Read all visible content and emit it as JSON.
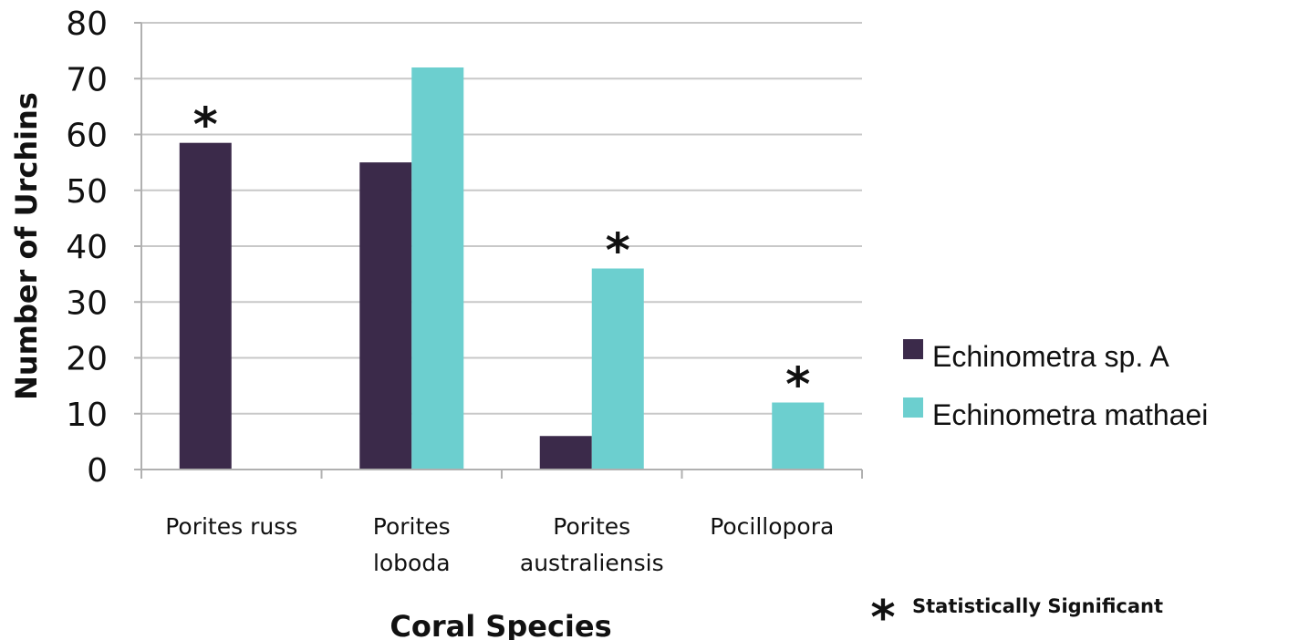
{
  "chart_data": {
    "type": "bar",
    "title": "",
    "xlabel": "Coral Species",
    "ylabel": "Number of Urchins",
    "ylim": [
      0,
      80
    ],
    "yticks": [
      0,
      10,
      20,
      30,
      40,
      50,
      60,
      70,
      80
    ],
    "grid": true,
    "legend_position": "right",
    "categories": [
      [
        "Porites russ"
      ],
      [
        "Porites",
        "loboda"
      ],
      [
        "Porites",
        "australiensis"
      ],
      [
        "Pocillopora"
      ]
    ],
    "series": [
      {
        "name": "Echinometra sp. A",
        "color": "#3b2a4a",
        "values": [
          58.5,
          55,
          6,
          0
        ]
      },
      {
        "name": "Echinometra mathaei",
        "color": "#6ccfcf",
        "values": [
          0,
          72,
          36,
          12
        ]
      }
    ],
    "significance_markers": [
      {
        "category_index": 0,
        "series_index": 0,
        "symbol": "*"
      },
      {
        "category_index": 2,
        "series_index": 1,
        "symbol": "*"
      },
      {
        "category_index": 3,
        "series_index": 1,
        "symbol": "*"
      }
    ],
    "note": {
      "symbol": "*",
      "text": "Statistically Significant"
    }
  }
}
